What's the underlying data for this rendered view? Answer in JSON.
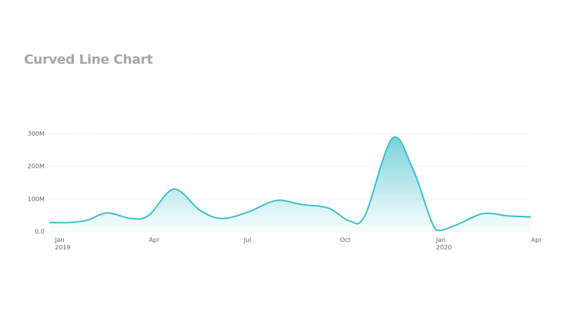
{
  "chart_data": {
    "type": "area",
    "title": "Curved Line Chart",
    "line_color": "#3fbfcc",
    "fill_color": "#3fbfcc",
    "grid": "horizontal-dotted",
    "xlim": [
      "2019-01-01",
      "2020-04-01"
    ],
    "ylim": [
      0,
      300000000
    ],
    "yticks": [
      {
        "value": 0,
        "label": "0.0"
      },
      {
        "value": 100000000,
        "label": "100M"
      },
      {
        "value": 200000000,
        "label": "200M"
      },
      {
        "value": 300000000,
        "label": "300M"
      }
    ],
    "xticks": [
      {
        "date": "2019-01-01",
        "label": "Jan",
        "sublabel": "2019"
      },
      {
        "date": "2019-04-01",
        "label": "Apr",
        "sublabel": ""
      },
      {
        "date": "2019-07-01",
        "label": "Jul",
        "sublabel": ""
      },
      {
        "date": "2019-10-01",
        "label": "Oct",
        "sublabel": ""
      },
      {
        "date": "2020-01-01",
        "label": "Jan",
        "sublabel": "2020"
      },
      {
        "date": "2020-04-01",
        "label": "Apr",
        "sublabel": ""
      }
    ],
    "x": [
      "2018-12-25",
      "2019-01-15",
      "2019-02-01",
      "2019-02-20",
      "2019-03-15",
      "2019-04-01",
      "2019-04-25",
      "2019-05-20",
      "2019-06-10",
      "2019-07-05",
      "2019-08-01",
      "2019-08-25",
      "2019-09-20",
      "2019-10-10",
      "2019-10-25",
      "2019-11-20",
      "2019-12-10",
      "2020-01-01",
      "2020-01-20",
      "2020-02-15",
      "2020-03-10",
      "2020-04-01"
    ],
    "values": [
      28000000,
      28000000,
      35000000,
      57000000,
      40000000,
      50000000,
      130000000,
      65000000,
      40000000,
      60000000,
      95000000,
      83000000,
      72000000,
      33000000,
      50000000,
      285000000,
      190000000,
      5000000,
      20000000,
      55000000,
      48000000,
      45000000
    ]
  }
}
